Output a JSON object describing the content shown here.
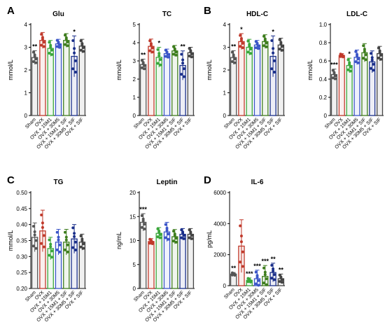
{
  "colors": {
    "Sham": "#555555",
    "OVX": "#c0392b",
    "OVX + 15M1": "#3aa63a",
    "OVX + 30M5": "#3b56c8",
    "OVX + 15M1 + SIF": "#3e7d1e",
    "OVX + 30M5 + SIF": "#1a2f8a",
    "OVX + SIF": "#444444"
  },
  "chart_data": [
    {
      "panel": "A",
      "type": "bar",
      "title": "Glu",
      "ylabel": "mmol/L",
      "categories": [
        "Sham",
        "OVX",
        "OVX + 15M1",
        "OVX + 30M5",
        "OVX + 15M1 + SIF",
        "OVX + 30M5 + SIF",
        "OVX + SIF"
      ],
      "values": [
        2.55,
        3.3,
        2.95,
        3.15,
        3.3,
        2.6,
        3.05
      ],
      "errors": [
        0.3,
        0.35,
        0.35,
        0.2,
        0.3,
        0.9,
        0.3
      ],
      "sig": [
        "**",
        "",
        "",
        "",
        "",
        "*",
        ""
      ],
      "ylim": [
        0,
        4
      ],
      "yticks": [
        0,
        1,
        2,
        3,
        4
      ],
      "ytick_labels": [
        "0",
        "1",
        "2",
        "3",
        "4"
      ]
    },
    {
      "panel": "",
      "type": "bar",
      "title": "TC",
      "ylabel": "mmol/L",
      "categories": [
        "Sham",
        "OVX",
        "OVX + 15M1",
        "OVX + 30M5",
        "OVX + 15M1 + SIF",
        "OVX + 30M5 + SIF",
        "OVX + SIF"
      ],
      "values": [
        2.8,
        3.8,
        3.2,
        3.4,
        3.55,
        2.75,
        3.45
      ],
      "errors": [
        0.3,
        0.4,
        0.55,
        0.25,
        0.3,
        0.8,
        0.3
      ],
      "sig": [
        "**",
        "",
        "*",
        "",
        "",
        "**",
        ""
      ],
      "ylim": [
        0,
        5
      ],
      "yticks": [
        0,
        1,
        2,
        3,
        4,
        5
      ],
      "ytick_labels": [
        "0",
        "1",
        "2",
        "3",
        "4",
        "5"
      ]
    },
    {
      "panel": "B",
      "type": "bar",
      "title": "HDL-C",
      "ylabel": "mmol/L",
      "categories": [
        "Sham",
        "OVX",
        "OVX + 15M1",
        "OVX + 30M5",
        "OVX + 15M1 + SIF",
        "OVX + 30M5 + SIF",
        "OVX + SIF"
      ],
      "values": [
        2.55,
        3.25,
        3.0,
        3.1,
        3.25,
        2.6,
        3.1
      ],
      "errors": [
        0.3,
        0.35,
        0.35,
        0.2,
        0.3,
        0.9,
        0.3
      ],
      "sig": [
        "**",
        "*",
        "",
        "",
        "",
        "*",
        ""
      ],
      "ylim": [
        0,
        4
      ],
      "yticks": [
        0,
        1,
        2,
        3,
        4
      ],
      "ytick_labels": [
        "0",
        "1",
        "2",
        "3",
        "4"
      ]
    },
    {
      "panel": "",
      "type": "bar",
      "title": "LDL-C",
      "ylabel": "mmol/L",
      "categories": [
        "Sham",
        "OVX",
        "OVX + 15M1",
        "OVX + 30M5",
        "OVX + 15M1 + SIF",
        "OVX + 30M5 + SIF",
        "OVX + SIF"
      ],
      "values": [
        0.45,
        0.66,
        0.55,
        0.64,
        0.69,
        0.59,
        0.68
      ],
      "errors": [
        0.06,
        0.02,
        0.08,
        0.08,
        0.1,
        0.12,
        0.08
      ],
      "sig": [
        "***",
        "",
        "*",
        "",
        "",
        "",
        ""
      ],
      "ylim": [
        0,
        1.0
      ],
      "yticks": [
        0,
        0.2,
        0.4,
        0.6,
        0.8,
        1.0
      ],
      "ytick_labels": [
        "0",
        "0.2",
        "0.4",
        "0.6",
        "0.8",
        "1.0"
      ]
    },
    {
      "panel": "C",
      "type": "bar",
      "title": "TG",
      "ylabel": "mmol/L",
      "categories": [
        "Sham",
        "OVX",
        "OVX + 15M1",
        "OVX + 30M5",
        "OVX + 15M1 + SIF",
        "OVX + 30M5 + SIF",
        "OVX + SIF"
      ],
      "values": [
        0.36,
        0.38,
        0.325,
        0.345,
        0.345,
        0.355,
        0.345
      ],
      "errors": [
        0.045,
        0.065,
        0.035,
        0.04,
        0.04,
        0.045,
        0.025
      ],
      "sig": [
        "",
        "",
        "",
        "",
        "",
        "",
        ""
      ],
      "ylim": [
        0.2,
        0.5
      ],
      "yticks": [
        0.2,
        0.25,
        0.3,
        0.35,
        0.4,
        0.45,
        0.5
      ],
      "ytick_labels": [
        "0.20",
        "0.25",
        "0.30",
        "0.35",
        "0.40",
        "0.45",
        "0.50"
      ]
    },
    {
      "panel": "",
      "type": "bar",
      "title": "Leptin",
      "ylabel": "ng/mL",
      "categories": [
        "Sham",
        "OVX",
        "OVX + 15M1",
        "OVX + 30M5",
        "OVX + 15M1 + SIF",
        "OVX + 30M5 + SIF",
        "OVX + SIF"
      ],
      "values": [
        13.8,
        9.8,
        11.5,
        11.8,
        10.8,
        11.3,
        11.3
      ],
      "errors": [
        1.8,
        0.6,
        1.2,
        2.0,
        1.5,
        1.2,
        1.2
      ],
      "sig": [
        "***",
        "",
        "",
        "",
        "",
        "",
        ""
      ],
      "ylim": [
        0,
        20
      ],
      "yticks": [
        0,
        5,
        10,
        15,
        20
      ],
      "ytick_labels": [
        "0",
        "5",
        "10",
        "15",
        "20"
      ]
    },
    {
      "panel": "D",
      "type": "bar",
      "title": "IL-6",
      "ylabel": "pg/mL",
      "categories": [
        "Sham",
        "OVX",
        "OVX + 15M1",
        "OVX + 30M5",
        "OVX + 15M1 + SIF",
        "OVX + 30M5 + SIF",
        "OVX + SIF"
      ],
      "values": [
        750,
        2550,
        350,
        450,
        600,
        850,
        450
      ],
      "errors": [
        100,
        1700,
        150,
        550,
        700,
        600,
        300
      ],
      "sig": [
        "**",
        "",
        "***",
        "***",
        "***",
        "**",
        "**"
      ],
      "ylim": [
        0,
        6000
      ],
      "yticks": [
        0,
        2000,
        4000,
        6000
      ],
      "ytick_labels": [
        "0",
        "2000",
        "4000",
        "6000"
      ]
    }
  ]
}
